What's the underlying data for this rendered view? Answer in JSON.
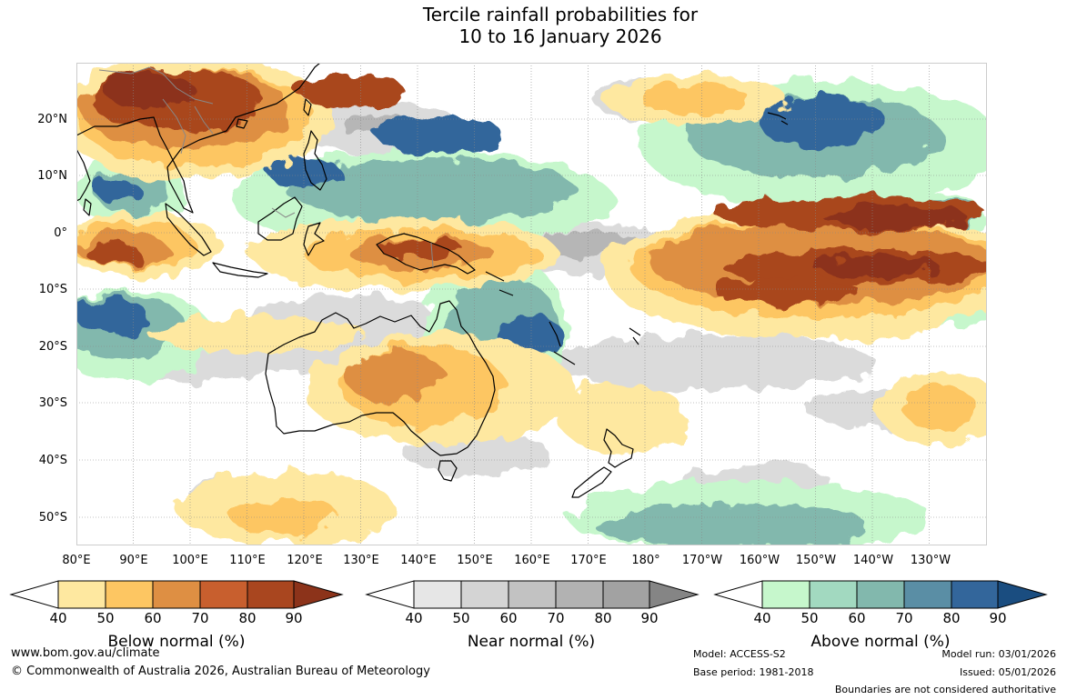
{
  "title": {
    "line1": "Tercile rainfall probabilities for",
    "line2": "10 to 16 January 2026"
  },
  "axes": {
    "lat_labels": [
      "20°N",
      "10°N",
      "0°",
      "10°S",
      "20°S",
      "30°S",
      "40°S",
      "50°S"
    ],
    "lon_labels": [
      "80°E",
      "90°E",
      "100°E",
      "110°E",
      "120°E",
      "130°E",
      "140°E",
      "150°E",
      "160°E",
      "170°E",
      "180°",
      "170°W",
      "160°W",
      "150°W",
      "140°W",
      "130°W"
    ]
  },
  "legends": [
    {
      "label": "Below normal (%)",
      "ticks": [
        "40",
        "50",
        "60",
        "70",
        "80",
        "90"
      ],
      "colors": [
        "#ffffff",
        "#fee8a0",
        "#fdc662",
        "#de8f43",
        "#c85f2e",
        "#a9461f",
        "#8c331a"
      ]
    },
    {
      "label": "Near normal (%)",
      "ticks": [
        "40",
        "50",
        "60",
        "70",
        "80",
        "90"
      ],
      "colors": [
        "#ffffff",
        "#e6e6e6",
        "#d4d4d4",
        "#c2c2c2",
        "#b2b2b2",
        "#a2a2a2",
        "#858585"
      ]
    },
    {
      "label": "Above normal (%)",
      "ticks": [
        "40",
        "50",
        "60",
        "70",
        "80",
        "90"
      ],
      "colors": [
        "#ffffff",
        "#c6f7cc",
        "#a2d9c0",
        "#82b8ad",
        "#5a8ea5",
        "#33669b",
        "#1a4d80"
      ]
    }
  ],
  "footer": {
    "website": "www.bom.gov.au/climate",
    "copyright": "© Commonwealth of Australia 2026, Australian Bureau of Meteorology",
    "model": "Model: ACCESS-S2",
    "base_period": "Base period: 1981-2018",
    "model_run": "Model run: 03/01/2026",
    "issued": "Issued: 05/01/2026",
    "boundaries": "Boundaries are not considered authoritative"
  }
}
